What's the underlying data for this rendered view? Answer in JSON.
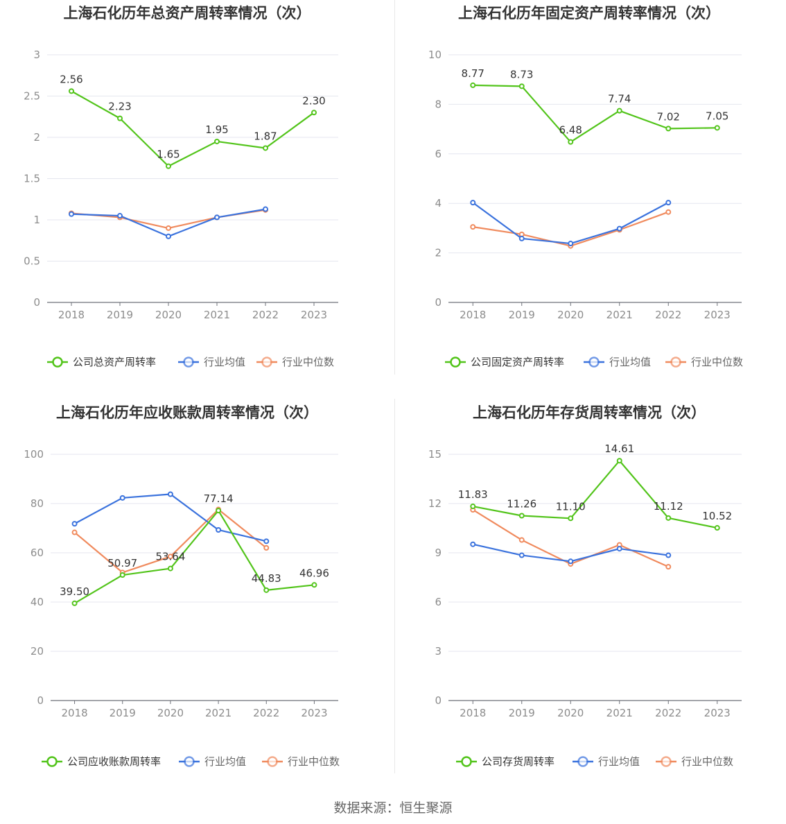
{
  "colors": {
    "company": "#52c41a",
    "avg": "#3a72dd",
    "median": "#f08a5d"
  },
  "source_prefix": "数据来源：",
  "source_name": "恒生聚源",
  "chart_data": [
    {
      "type": "line",
      "title": "上海石化历年总资产周转率情况（次）",
      "categories": [
        "2018",
        "2019",
        "2020",
        "2021",
        "2022",
        "2023"
      ],
      "ylim": [
        0,
        3
      ],
      "yticks": [
        "0",
        "0.5",
        "1",
        "1.5",
        "2",
        "2.5",
        "3"
      ],
      "grid": true,
      "legend": "bottom",
      "series": [
        {
          "name": "公司总资产周转率",
          "values": [
            2.56,
            2.23,
            1.65,
            1.95,
            1.87,
            2.3
          ],
          "labels": [
            "2.56",
            "2.23",
            "1.65",
            "1.95",
            "1.87",
            "2.30"
          ]
        },
        {
          "name": "行业均值",
          "values": [
            1.07,
            1.05,
            0.8,
            1.03,
            1.13,
            null
          ]
        },
        {
          "name": "行业中位数",
          "values": [
            1.08,
            1.03,
            0.9,
            1.03,
            1.12,
            null
          ]
        }
      ]
    },
    {
      "type": "line",
      "title": "上海石化历年固定资产周转率情况（次）",
      "categories": [
        "2018",
        "2019",
        "2020",
        "2021",
        "2022",
        "2023"
      ],
      "ylim": [
        0,
        10
      ],
      "yticks": [
        "0",
        "2",
        "4",
        "6",
        "8",
        "10"
      ],
      "grid": true,
      "legend": "bottom",
      "series": [
        {
          "name": "公司固定资产周转率",
          "values": [
            8.77,
            8.73,
            6.48,
            7.74,
            7.02,
            7.05
          ],
          "labels": [
            "8.77",
            "8.73",
            "6.48",
            "7.74",
            "7.02",
            "7.05"
          ]
        },
        {
          "name": "行业均值",
          "values": [
            4.03,
            2.58,
            2.38,
            2.98,
            4.03,
            null
          ]
        },
        {
          "name": "行业中位数",
          "values": [
            3.05,
            2.75,
            2.28,
            2.93,
            3.65,
            null
          ]
        }
      ]
    },
    {
      "type": "line",
      "title": "上海石化历年应收账款周转率情况（次）",
      "categories": [
        "2018",
        "2019",
        "2020",
        "2021",
        "2022",
        "2023"
      ],
      "ylim": [
        0,
        100
      ],
      "yticks": [
        "0",
        "20",
        "40",
        "60",
        "80",
        "100"
      ],
      "grid": true,
      "legend": "bottom",
      "series": [
        {
          "name": "公司应收账款周转率",
          "values": [
            39.5,
            50.97,
            53.64,
            77.14,
            44.83,
            46.96
          ],
          "labels": [
            "39.50",
            "50.97",
            "53.64",
            "77.14",
            "44.83",
            "46.96"
          ]
        },
        {
          "name": "行业均值",
          "values": [
            71.8,
            82.3,
            83.8,
            69.3,
            64.7,
            null
          ]
        },
        {
          "name": "行业中位数",
          "values": [
            68.3,
            52.0,
            58.5,
            77.6,
            62.0,
            null
          ]
        }
      ]
    },
    {
      "type": "line",
      "title": "上海石化历年存货周转率情况（次）",
      "categories": [
        "2018",
        "2019",
        "2020",
        "2021",
        "2022",
        "2023"
      ],
      "ylim": [
        0,
        15
      ],
      "yticks": [
        "0",
        "3",
        "6",
        "9",
        "12",
        "15"
      ],
      "grid": true,
      "legend": "bottom",
      "series": [
        {
          "name": "公司存货周转率",
          "values": [
            11.83,
            11.26,
            11.1,
            14.61,
            11.12,
            10.52
          ],
          "labels": [
            "11.83",
            "11.26",
            "11.10",
            "14.61",
            "11.12",
            "10.52"
          ]
        },
        {
          "name": "行业均值",
          "values": [
            9.52,
            8.85,
            8.48,
            9.25,
            8.85,
            null
          ]
        },
        {
          "name": "行业中位数",
          "values": [
            11.62,
            9.78,
            8.32,
            9.48,
            8.15,
            null
          ]
        }
      ]
    }
  ]
}
